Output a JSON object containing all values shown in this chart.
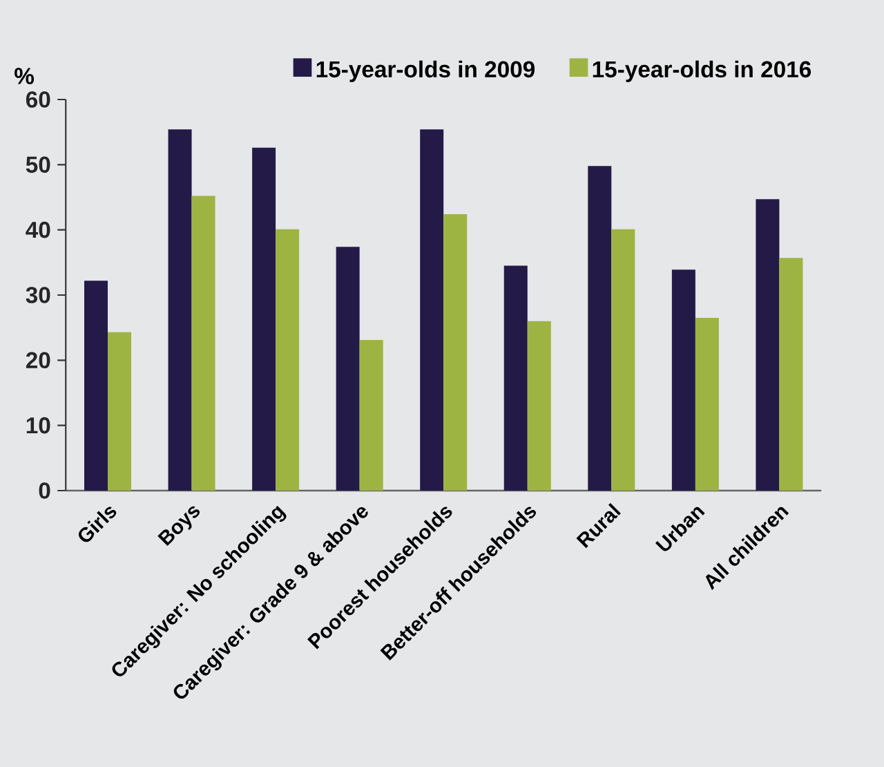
{
  "chart_data": {
    "type": "bar",
    "ylabel": "%",
    "categories": [
      "Girls",
      "Boys",
      "Caregiver: No schooling",
      "Caregiver: Grade 9 & above",
      "Poorest households",
      "Better-off households",
      "Rural",
      "Urban",
      "All children"
    ],
    "series": [
      {
        "name": "15-year-olds in 2009",
        "color": "#241a48",
        "values": [
          32.2,
          55.4,
          52.6,
          37.4,
          55.4,
          34.5,
          49.8,
          33.9,
          44.7
        ]
      },
      {
        "name": "15-year-olds in 2016",
        "color": "#9db443",
        "values": [
          24.3,
          45.2,
          40.1,
          23.1,
          42.4,
          26.0,
          40.1,
          26.5,
          35.7
        ]
      }
    ],
    "ylim": [
      0,
      60
    ],
    "yticks": [
      0,
      10,
      20,
      30,
      40,
      50,
      60
    ],
    "legend": "top right"
  }
}
